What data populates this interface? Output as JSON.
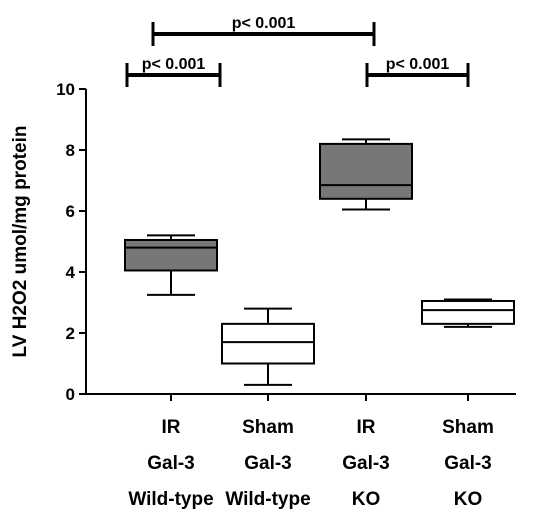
{
  "chart_data": {
    "type": "box",
    "ylabel": "LV H2O2 umol/mg protein",
    "ylim": [
      0,
      10
    ],
    "yticks": [
      "0",
      "2",
      "4",
      "6",
      "8",
      "10"
    ],
    "grid": false,
    "categories": [
      [
        "IR",
        "Gal-3",
        "Wild-type"
      ],
      [
        "Sham",
        "Gal-3",
        "Wild-type"
      ],
      [
        "IR",
        "Gal-3",
        "KO"
      ],
      [
        "Sham",
        "Gal-3",
        "KO"
      ]
    ],
    "boxes": [
      {
        "min": 3.25,
        "q1": 4.05,
        "median": 4.8,
        "q3": 5.05,
        "max": 5.2,
        "fill": "#777777"
      },
      {
        "min": 0.3,
        "q1": 1.0,
        "median": 1.7,
        "q3": 2.3,
        "max": 2.8,
        "fill": "#ffffff"
      },
      {
        "min": 6.05,
        "q1": 6.4,
        "median": 6.85,
        "q3": 8.2,
        "max": 8.35,
        "fill": "#777777"
      },
      {
        "min": 2.2,
        "q1": 2.3,
        "median": 2.75,
        "q3": 3.05,
        "max": 3.1,
        "fill": "#ffffff"
      }
    ],
    "significance": [
      {
        "from": 0,
        "to": 1,
        "label": "p< 0.001"
      },
      {
        "from": 2,
        "to": 3,
        "label": "p< 0.001"
      },
      {
        "from": 0,
        "to": 2,
        "label": "p< 0.001"
      }
    ]
  }
}
